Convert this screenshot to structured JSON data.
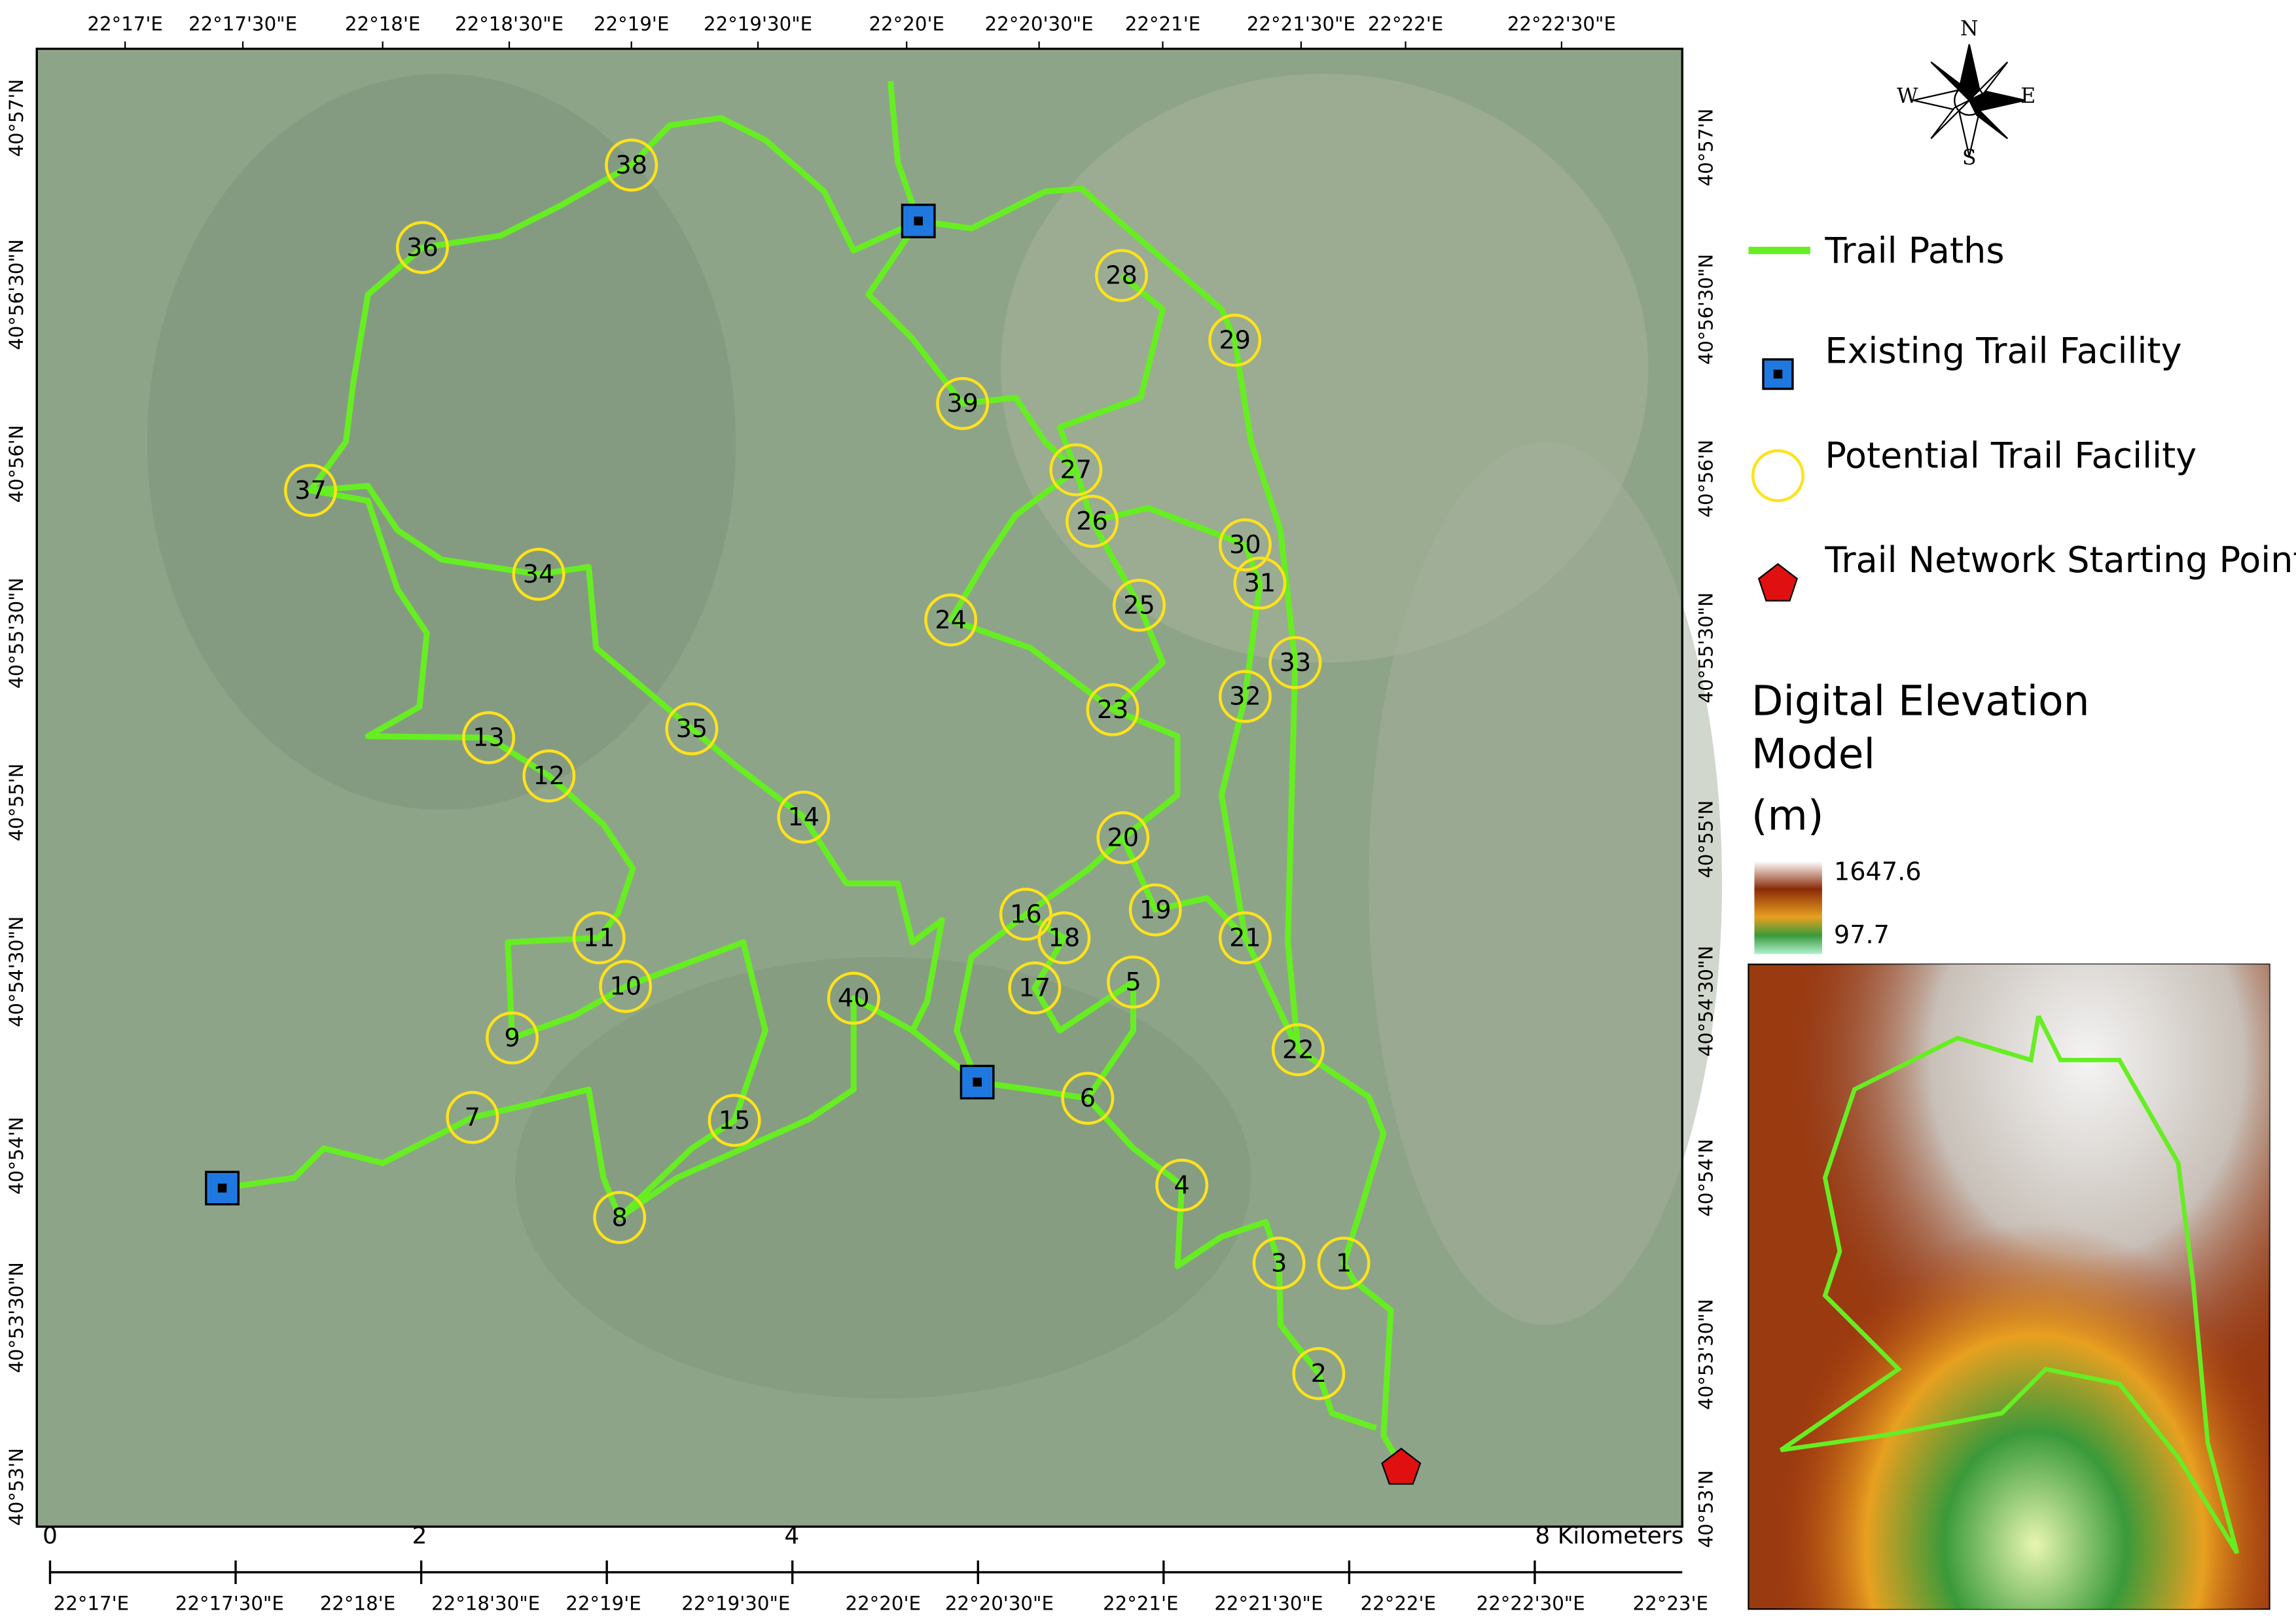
{
  "map": {
    "top_labels": [
      "22°17'E",
      "22°17'30\"E",
      "22°18'E",
      "22°18'30\"E",
      "22°19'E",
      "22°19'30\"E",
      "22°20'E",
      "22°20'30\"E",
      "22°21'E",
      "22°21'30\"E",
      "22°22'E",
      "22°22'30\"E"
    ],
    "bottom_labels": [
      "22°17'E",
      "22°17'30\"E",
      "22°18'E",
      "22°18'30\"E",
      "22°19'E",
      "22°19'30\"E",
      "22°20'E",
      "22°20'30\"E",
      "22°21'E",
      "22°21'30\"E",
      "22°22'E",
      "22°22'30\"E",
      "22°23'E"
    ],
    "left_labels": [
      "40°57'N",
      "40°56'30\"N",
      "40°56'N",
      "40°55'30\"N",
      "40°55'N",
      "40°54'30\"N",
      "40°54'N",
      "40°53'30\"N",
      "40°53'N"
    ],
    "right_labels": [
      "40°57'N",
      "40°56'30\"N",
      "40°56'N",
      "40°55'30\"N",
      "40°55'N",
      "40°54'30\"N",
      "40°54'N",
      "40°53'30\"N",
      "40°53'N"
    ],
    "scale_labels": [
      "0",
      "2",
      "4",
      "8 Kilometers"
    ],
    "facilities": [
      "1",
      "2",
      "3",
      "4",
      "5",
      "6",
      "7",
      "8",
      "9",
      "10",
      "11",
      "12",
      "13",
      "14",
      "15",
      "16",
      "17",
      "18",
      "19",
      "20",
      "21",
      "22",
      "23",
      "24",
      "25",
      "26",
      "27",
      "28",
      "29",
      "30",
      "31",
      "32",
      "33",
      "34",
      "35",
      "36",
      "37",
      "38",
      "39",
      "40"
    ]
  },
  "compass": {
    "north": "N",
    "south": "S",
    "east": "E",
    "west": "W"
  },
  "legend": [
    "Trail Paths",
    "Existing Trail Facility",
    "Potential Trail Facility",
    "Trail Network Starting Point"
  ],
  "dem": {
    "title": [
      "Digital Elevation",
      "Model"
    ],
    "unit": "(m)",
    "max": 1647.6,
    "min": 97.7
  }
}
